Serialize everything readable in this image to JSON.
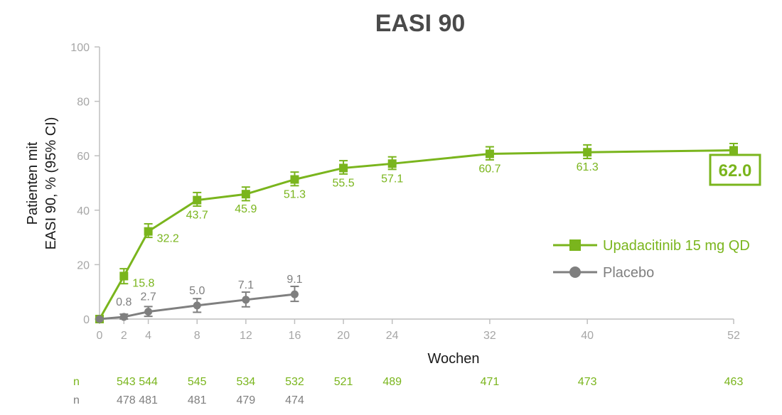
{
  "colors": {
    "upa": "#7ab51d",
    "placebo": "#7f7f7f",
    "axis": "#bfbfbf",
    "tick_text": "#a6a6a6"
  },
  "chart_data": {
    "type": "line",
    "title": "EASI 90",
    "xlabel": "Wochen",
    "ylabel_line1": "Patienten mit",
    "ylabel_line2": "EASI 90, % (95% CI)",
    "xlim": [
      0,
      52
    ],
    "ylim": [
      0,
      100
    ],
    "xticks": [
      0,
      2,
      4,
      8,
      12,
      16,
      20,
      24,
      32,
      40,
      52
    ],
    "yticks": [
      0,
      20,
      40,
      60,
      80,
      100
    ],
    "grid": false,
    "legend_position": "right",
    "series": [
      {
        "name": "Upadacitinib 15 mg QD",
        "marker": "square",
        "x": [
          0,
          2,
          4,
          8,
          12,
          16,
          20,
          24,
          32,
          40,
          52
        ],
        "values": [
          0,
          15.8,
          32.2,
          43.7,
          45.9,
          51.3,
          55.5,
          57.1,
          60.7,
          61.3,
          62.0
        ],
        "ci_low": [
          0,
          13.0,
          30.0,
          41.5,
          43.5,
          49.0,
          53.3,
          55.0,
          58.5,
          59.0,
          59.5
        ],
        "ci_high": [
          0,
          18.5,
          35.0,
          46.5,
          48.5,
          54.0,
          58.2,
          59.6,
          63.3,
          64.0,
          64.5
        ],
        "labels": [
          "",
          "15.8",
          "32.2",
          "43.7",
          "45.9",
          "51.3",
          "55.5",
          "57.1",
          "60.7",
          "61.3",
          "62.0"
        ],
        "n_values": [
          "543",
          "544",
          "545",
          "534",
          "532",
          "521",
          "489",
          "471",
          "473",
          "463"
        ],
        "n_x": [
          2,
          4,
          8,
          12,
          16,
          20,
          24,
          32,
          40,
          52
        ]
      },
      {
        "name": "Placebo",
        "marker": "circle",
        "x": [
          0,
          2,
          4,
          8,
          12,
          16
        ],
        "values": [
          0,
          0.8,
          2.7,
          5.0,
          7.1,
          9.1
        ],
        "ci_low": [
          0,
          0.0,
          1.0,
          2.5,
          4.5,
          6.5
        ],
        "ci_high": [
          0,
          1.8,
          4.6,
          7.5,
          9.9,
          12.0
        ],
        "labels": [
          "",
          "0.8",
          "2.7",
          "5.0",
          "7.1",
          "9.1"
        ],
        "n_values": [
          "478",
          "481",
          "481",
          "479",
          "474"
        ],
        "n_x": [
          2,
          4,
          8,
          12,
          16
        ]
      }
    ],
    "n_row_label": "n",
    "highlight_value": "62.0"
  }
}
